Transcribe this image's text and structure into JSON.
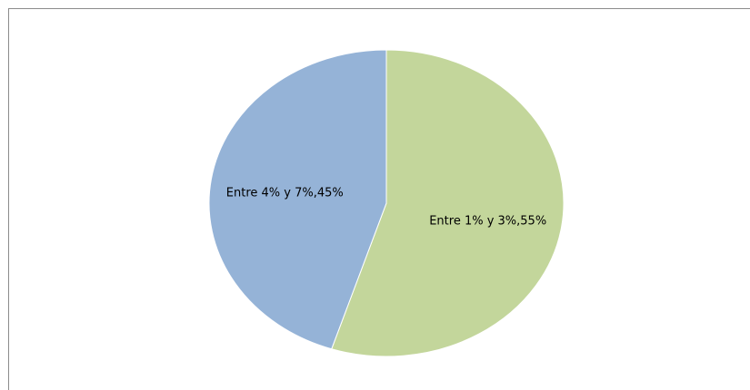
{
  "chart_data": {
    "type": "pie",
    "title": "",
    "slices": [
      {
        "label": "Entre 1% y 3%",
        "value": 55,
        "color": "#c3d69b",
        "data_label": "Entre 1% y 3%,55%"
      },
      {
        "label": "Entre 4% y 7%",
        "value": 45,
        "color": "#95b3d7",
        "data_label": "Entre 4% y 7%,45%"
      }
    ],
    "start": "12 o'clock",
    "direction": "clockwise",
    "legend": "none"
  }
}
